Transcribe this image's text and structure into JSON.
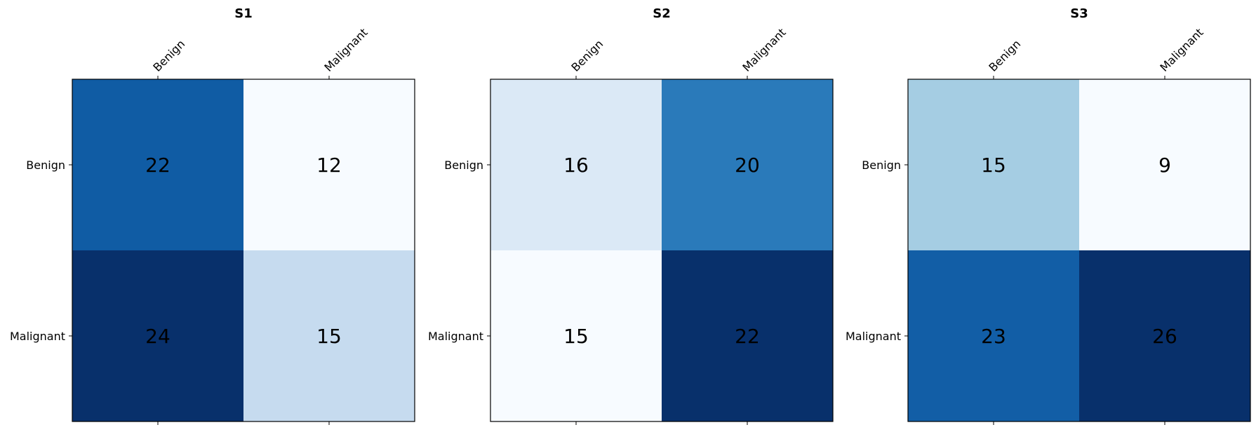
{
  "chart_data": [
    {
      "type": "heatmap",
      "title": "S1",
      "x_categories": [
        "Benign",
        "Malignant"
      ],
      "y_categories": [
        "Benign",
        "Malignant"
      ],
      "values": [
        [
          22,
          12
        ],
        [
          24,
          15
        ]
      ],
      "colormap": "Blues"
    },
    {
      "type": "heatmap",
      "title": "S2",
      "x_categories": [
        "Benign",
        "Malignant"
      ],
      "y_categories": [
        "Benign",
        "Malignant"
      ],
      "values": [
        [
          16,
          20
        ],
        [
          15,
          22
        ]
      ],
      "colormap": "Blues"
    },
    {
      "type": "heatmap",
      "title": "S3",
      "x_categories": [
        "Benign",
        "Malignant"
      ],
      "y_categories": [
        "Benign",
        "Malignant"
      ],
      "values": [
        [
          15,
          9
        ],
        [
          23,
          26
        ]
      ],
      "colormap": "Blues"
    }
  ]
}
